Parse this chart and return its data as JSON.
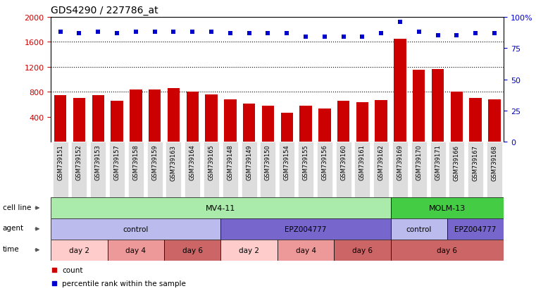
{
  "title": "GDS4290 / 227786_at",
  "samples": [
    "GSM739151",
    "GSM739152",
    "GSM739153",
    "GSM739157",
    "GSM739158",
    "GSM739159",
    "GSM739163",
    "GSM739164",
    "GSM739165",
    "GSM739148",
    "GSM739149",
    "GSM739150",
    "GSM739154",
    "GSM739155",
    "GSM739156",
    "GSM739160",
    "GSM739161",
    "GSM739162",
    "GSM739169",
    "GSM739170",
    "GSM739171",
    "GSM739166",
    "GSM739167",
    "GSM739168"
  ],
  "counts": [
    750,
    700,
    750,
    660,
    840,
    835,
    865,
    805,
    755,
    685,
    615,
    580,
    465,
    575,
    530,
    655,
    640,
    675,
    1650,
    1155,
    1170,
    800,
    700,
    685
  ],
  "percentile_ranks": [
    88,
    87,
    88,
    87,
    88,
    88,
    88,
    88,
    88,
    87,
    87,
    87,
    87,
    84,
    84,
    84,
    84,
    87,
    96,
    88,
    85,
    85,
    87,
    87
  ],
  "bar_color": "#cc0000",
  "dot_color": "#0000cc",
  "ylim_left": [
    0,
    2000
  ],
  "ylim_right": [
    0,
    100
  ],
  "yticks_left": [
    400,
    800,
    1200,
    1600,
    2000
  ],
  "yticks_right": [
    0,
    25,
    50,
    75,
    100
  ],
  "grid_values": [
    800,
    1200,
    1600
  ],
  "background_color": "#ffffff",
  "plot_bg_color": "#ffffff",
  "cell_line_boxes": [
    {
      "start": 0,
      "end": 18,
      "label": "MV4-11",
      "color": "#aaeaaa"
    },
    {
      "start": 18,
      "end": 24,
      "label": "MOLM-13",
      "color": "#44cc44"
    }
  ],
  "agent_boxes": [
    {
      "start": 0,
      "end": 9,
      "label": "control",
      "color": "#bbbbee"
    },
    {
      "start": 9,
      "end": 18,
      "label": "EPZ004777",
      "color": "#7766cc"
    },
    {
      "start": 18,
      "end": 21,
      "label": "control",
      "color": "#bbbbee"
    },
    {
      "start": 21,
      "end": 24,
      "label": "EPZ004777",
      "color": "#7766cc"
    }
  ],
  "time_boxes": [
    {
      "start": 0,
      "end": 3,
      "label": "day 2",
      "color": "#ffcccc"
    },
    {
      "start": 3,
      "end": 6,
      "label": "day 4",
      "color": "#ee9999"
    },
    {
      "start": 6,
      "end": 9,
      "label": "day 6",
      "color": "#cc6666"
    },
    {
      "start": 9,
      "end": 12,
      "label": "day 2",
      "color": "#ffcccc"
    },
    {
      "start": 12,
      "end": 15,
      "label": "day 4",
      "color": "#ee9999"
    },
    {
      "start": 15,
      "end": 18,
      "label": "day 6",
      "color": "#cc6666"
    },
    {
      "start": 18,
      "end": 24,
      "label": "day 6",
      "color": "#cc6666"
    }
  ],
  "row_labels": [
    "cell line",
    "agent",
    "time"
  ],
  "legend_items": [
    {
      "symbol": "s",
      "color": "#cc0000",
      "label": "count"
    },
    {
      "symbol": "s",
      "color": "#0000cc",
      "label": "percentile rank within the sample"
    }
  ]
}
